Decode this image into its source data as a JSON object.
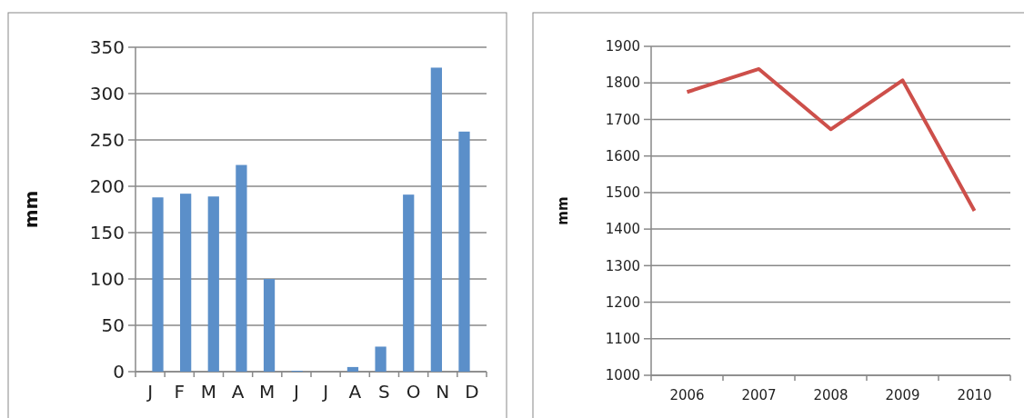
{
  "chart_data": [
    {
      "type": "bar",
      "ylabel": "mm",
      "categories": [
        "J",
        "F",
        "M",
        "A",
        "M",
        "J",
        "J",
        "A",
        "S",
        "O",
        "N",
        "D"
      ],
      "values": [
        188,
        192,
        189,
        223,
        100,
        1,
        0,
        5,
        27,
        191,
        328,
        259
      ],
      "color": "#5b8fc9",
      "ylim": [
        0,
        350
      ],
      "yticks": [
        0,
        50,
        100,
        150,
        200,
        250,
        300,
        350
      ],
      "grid": "y"
    },
    {
      "type": "line",
      "ylabel": "mm",
      "categories": [
        "2006",
        "2007",
        "2008",
        "2009",
        "2010"
      ],
      "values": [
        1775,
        1838,
        1673,
        1807,
        1450
      ],
      "color": "#cd4f4a",
      "ylim": [
        1000,
        1900
      ],
      "yticks": [
        1000,
        1100,
        1200,
        1300,
        1400,
        1500,
        1600,
        1700,
        1800,
        1900
      ],
      "grid": "y"
    }
  ]
}
